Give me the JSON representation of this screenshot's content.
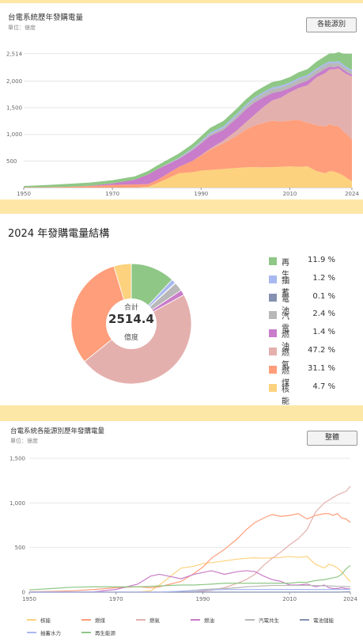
{
  "section1": {
    "title": "台電系統歷年發購電量",
    "unit": "單位：億度",
    "button": "各能源別"
  },
  "section2": {
    "title": "2024 年發購電量結構",
    "center_label_top": "合計",
    "center_value": "2514.4",
    "center_label_bottom": "億度"
  },
  "section3": {
    "title": "台電系統各能源別歷年發購電量",
    "unit": "單位：億度",
    "button": "整體"
  },
  "colors": {
    "nuclear": "#fcd27e",
    "coal": "#ff9e7a",
    "gas": "#e4b0ad",
    "oil": "#c87cc9",
    "cogen": "#b8b8b8",
    "battery": "#8491b0",
    "pumped": "#a8b8f0",
    "renewable": "#8fc786"
  },
  "chart_data": [
    {
      "type": "area",
      "title": "台電系統歷年發購電量",
      "ylabel": "單位：億度",
      "x_ticks": [
        "1950",
        "1970",
        "1990",
        "2010",
        "2024"
      ],
      "y_ticks": [
        "500",
        "1,000",
        "1,500",
        "2,000",
        "2,514"
      ],
      "ylim": [
        0,
        2600
      ],
      "stack_order": [
        "nuclear",
        "coal",
        "gas",
        "oil",
        "cogen",
        "pumped",
        "renewable"
      ],
      "x": [
        1950,
        1955,
        1960,
        1965,
        1970,
        1975,
        1978,
        1980,
        1985,
        1988,
        1990,
        1992,
        1995,
        1998,
        2000,
        2002,
        2004,
        2006,
        2008,
        2010,
        2012,
        2014,
        2016,
        2018,
        2019,
        2020,
        2021,
        2022,
        2023,
        2024
      ],
      "series": [
        {
          "key": "nuclear",
          "values": [
            0,
            0,
            0,
            0,
            0,
            0,
            15,
            80,
            270,
            290,
            320,
            330,
            350,
            370,
            380,
            385,
            380,
            385,
            390,
            400,
            390,
            400,
            310,
            270,
            310,
            300,
            270,
            230,
            170,
            118
          ]
        },
        {
          "key": "coal",
          "values": [
            5,
            8,
            15,
            30,
            50,
            60,
            50,
            60,
            120,
            210,
            280,
            380,
            480,
            600,
            700,
            780,
            830,
            870,
            850,
            860,
            880,
            820,
            860,
            880,
            880,
            860,
            880,
            830,
            820,
            782
          ]
        },
        {
          "key": "gas",
          "values": [
            0,
            0,
            0,
            0,
            0,
            0,
            0,
            0,
            0,
            0,
            10,
            20,
            50,
            100,
            140,
            200,
            300,
            380,
            450,
            530,
            600,
            700,
            900,
            1000,
            1030,
            1060,
            1090,
            1110,
            1130,
            1187
          ]
        },
        {
          "key": "oil",
          "values": [
            0,
            0,
            0,
            5,
            30,
            90,
            180,
            200,
            150,
            200,
            220,
            240,
            200,
            230,
            240,
            230,
            180,
            140,
            120,
            80,
            80,
            90,
            60,
            80,
            50,
            40,
            40,
            50,
            40,
            35
          ]
        },
        {
          "key": "cogen",
          "values": [
            0,
            0,
            0,
            0,
            0,
            0,
            0,
            0,
            10,
            20,
            30,
            35,
            40,
            50,
            60,
            65,
            70,
            75,
            75,
            75,
            75,
            75,
            75,
            70,
            70,
            68,
            65,
            65,
            62,
            60
          ]
        },
        {
          "key": "pumped",
          "values": [
            0,
            0,
            0,
            0,
            0,
            0,
            0,
            0,
            10,
            15,
            20,
            25,
            30,
            30,
            30,
            30,
            30,
            30,
            30,
            30,
            30,
            30,
            30,
            30,
            30,
            30,
            30,
            30,
            30,
            30
          ]
        },
        {
          "key": "renewable",
          "values": [
            25,
            40,
            55,
            60,
            60,
            60,
            65,
            70,
            80,
            80,
            85,
            90,
            100,
            100,
            100,
            100,
            100,
            100,
            100,
            100,
            110,
            110,
            130,
            140,
            150,
            160,
            170,
            200,
            260,
            300
          ]
        }
      ]
    },
    {
      "type": "pie",
      "title": "2024 年發購電量結構",
      "total": 2514.4,
      "slices": [
        {
          "key": "renewable",
          "label": "再生",
          "pct": 11.9,
          "pct_text": "11.9 %"
        },
        {
          "key": "pumped",
          "label": "抽蓄",
          "pct": 1.2,
          "pct_text": "1.2 %"
        },
        {
          "key": "battery",
          "label": "電池",
          "pct": 0.1,
          "pct_text": "0.1 %"
        },
        {
          "key": "cogen",
          "label": "汽電",
          "pct": 2.4,
          "pct_text": "2.4 %"
        },
        {
          "key": "oil",
          "label": "燃油",
          "pct": 1.4,
          "pct_text": "1.4 %"
        },
        {
          "key": "gas",
          "label": "燃氣",
          "pct": 47.2,
          "pct_text": "47.2 %"
        },
        {
          "key": "coal",
          "label": "燃煤",
          "pct": 31.1,
          "pct_text": "31.1 %"
        },
        {
          "key": "nuclear",
          "label": "核能",
          "pct": 4.7,
          "pct_text": "4.7 %"
        }
      ]
    },
    {
      "type": "line",
      "title": "台電系統各能源別歷年發購電量",
      "ylabel": "單位：億度",
      "x_ticks": [
        "1950",
        "1970",
        "1990",
        "2010",
        "2024"
      ],
      "y_ticks": [
        "0",
        "500",
        "1,000",
        "1,500"
      ],
      "ylim": [
        0,
        1500
      ],
      "x": [
        1950,
        1955,
        1960,
        1965,
        1970,
        1975,
        1978,
        1980,
        1985,
        1988,
        1990,
        1992,
        1995,
        1998,
        2000,
        2002,
        2004,
        2006,
        2008,
        2010,
        2012,
        2014,
        2016,
        2018,
        2019,
        2020,
        2021,
        2022,
        2023,
        2024
      ],
      "legend": [
        {
          "key": "nuclear",
          "label": "核能"
        },
        {
          "key": "coal",
          "label": "燃煤"
        },
        {
          "key": "gas",
          "label": "燃氣"
        },
        {
          "key": "oil",
          "label": "燃油"
        },
        {
          "key": "cogen",
          "label": "汽電共生"
        },
        {
          "key": "battery",
          "label": "電池儲能"
        },
        {
          "key": "pumped",
          "label": "抽蓄水力"
        },
        {
          "key": "renewable",
          "label": "再生能源"
        }
      ],
      "series": [
        {
          "key": "nuclear",
          "values": [
            0,
            0,
            0,
            0,
            0,
            0,
            15,
            80,
            270,
            290,
            320,
            330,
            350,
            370,
            380,
            385,
            380,
            385,
            390,
            400,
            390,
            400,
            310,
            270,
            310,
            300,
            270,
            230,
            170,
            118
          ]
        },
        {
          "key": "coal",
          "values": [
            5,
            8,
            15,
            30,
            50,
            60,
            50,
            60,
            120,
            210,
            280,
            380,
            480,
            600,
            700,
            780,
            830,
            870,
            850,
            860,
            880,
            820,
            860,
            880,
            880,
            860,
            880,
            830,
            820,
            782
          ]
        },
        {
          "key": "gas",
          "values": [
            0,
            0,
            0,
            0,
            0,
            0,
            0,
            0,
            0,
            0,
            10,
            20,
            50,
            100,
            140,
            200,
            300,
            380,
            450,
            530,
            600,
            700,
            900,
            1000,
            1030,
            1060,
            1090,
            1110,
            1130,
            1187
          ]
        },
        {
          "key": "oil",
          "values": [
            0,
            0,
            0,
            5,
            30,
            90,
            180,
            200,
            150,
            200,
            220,
            240,
            200,
            230,
            240,
            230,
            180,
            140,
            120,
            80,
            80,
            90,
            60,
            80,
            50,
            40,
            40,
            50,
            40,
            35
          ]
        },
        {
          "key": "cogen",
          "values": [
            0,
            0,
            0,
            0,
            0,
            0,
            0,
            0,
            10,
            20,
            30,
            35,
            40,
            50,
            60,
            65,
            70,
            75,
            75,
            75,
            75,
            75,
            75,
            70,
            70,
            68,
            65,
            65,
            62,
            60
          ]
        },
        {
          "key": "battery",
          "values": [
            0,
            0,
            0,
            0,
            0,
            0,
            0,
            0,
            0,
            0,
            0,
            0,
            0,
            0,
            0,
            0,
            0,
            0,
            0,
            0,
            0,
            0,
            0,
            0,
            0,
            0,
            0,
            1,
            2,
            3
          ]
        },
        {
          "key": "pumped",
          "values": [
            0,
            0,
            0,
            0,
            0,
            0,
            0,
            0,
            10,
            15,
            20,
            25,
            30,
            30,
            30,
            30,
            30,
            30,
            30,
            30,
            30,
            30,
            30,
            30,
            30,
            30,
            30,
            30,
            30,
            30
          ]
        },
        {
          "key": "renewable",
          "values": [
            25,
            40,
            55,
            60,
            60,
            60,
            65,
            70,
            80,
            80,
            85,
            90,
            100,
            100,
            100,
            100,
            100,
            100,
            100,
            100,
            110,
            110,
            130,
            140,
            150,
            160,
            170,
            200,
            260,
            300
          ]
        }
      ]
    }
  ]
}
